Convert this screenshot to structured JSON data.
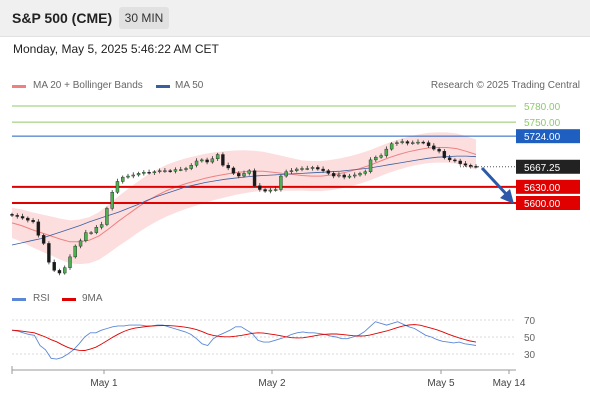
{
  "header": {
    "title": "S&P 500 (CME)",
    "timeframe": "30 MIN"
  },
  "date_line": "Monday, May 5, 2025 5:46:22 AM CET",
  "legend": {
    "bollinger": "MA 20 + Bollinger Bands",
    "ma50": "MA 50",
    "copyright": "Research © 2025 Trading Central",
    "rsi": "RSI",
    "ma9": "9MA"
  },
  "colors": {
    "bollinger": "#f08080",
    "ma50": "#3a5fa0",
    "resistance_green": "#8fc86a",
    "resistance_blue": "#1f5fbf",
    "support_red": "#e00000",
    "rsi": "#5b87d6",
    "rsi_ma": "#e00000",
    "current": "#222222"
  },
  "levels": [
    {
      "label": "5780.00",
      "value": 5780,
      "kind": "resistance_green"
    },
    {
      "label": "5750.00",
      "value": 5750,
      "kind": "resistance_green"
    },
    {
      "label": "5724.00",
      "value": 5724,
      "kind": "resistance_blue"
    },
    {
      "label": "5667.25",
      "value": 5667.25,
      "kind": "current"
    },
    {
      "label": "5630.00",
      "value": 5630,
      "kind": "support_red"
    },
    {
      "label": "5600.00",
      "value": 5600,
      "kind": "support_red"
    }
  ],
  "rsi_levels": [
    "70",
    "50",
    "30"
  ],
  "x_axis": [
    "May 1",
    "May 2",
    "May 5",
    "May 14"
  ],
  "chart_data": {
    "type": "candlestick",
    "instrument": "S&P 500 (CME)",
    "timeframe": "30 MIN",
    "current_price": 5667.25,
    "y_range": [
      5460,
      5810
    ],
    "rsi_range": [
      10,
      90
    ],
    "closes": [
      5577,
      5575,
      5572,
      5568,
      5565,
      5540,
      5525,
      5490,
      5475,
      5470,
      5480,
      5500,
      5520,
      5530,
      5545,
      5545,
      5555,
      5560,
      5590,
      5620,
      5640,
      5648,
      5650,
      5652,
      5655,
      5657,
      5656,
      5658,
      5660,
      5660,
      5659,
      5662,
      5662,
      5664,
      5670,
      5678,
      5680,
      5676,
      5682,
      5690,
      5670,
      5665,
      5655,
      5650,
      5655,
      5660,
      5632,
      5625,
      5622,
      5624,
      5625,
      5650,
      5658,
      5660,
      5663,
      5664,
      5664,
      5666,
      5663,
      5660,
      5655,
      5650,
      5652,
      5648,
      5650,
      5652,
      5655,
      5658,
      5680,
      5685,
      5688,
      5700,
      5710,
      5712,
      5714,
      5711,
      5712,
      5713,
      5712,
      5706,
      5700,
      5696,
      5684,
      5680,
      5678,
      5673,
      5670,
      5668,
      5667.25
    ],
    "bollinger_mid": [
      5563,
      5558,
      5551,
      5545,
      5539,
      5533,
      5528,
      5528,
      5531,
      5539,
      5552,
      5566,
      5579,
      5592,
      5604,
      5614,
      5623,
      5630,
      5636,
      5641,
      5646,
      5650,
      5653,
      5656,
      5658,
      5659,
      5659,
      5657,
      5655,
      5653,
      5651,
      5650,
      5650,
      5652,
      5655,
      5659,
      5664,
      5670,
      5677,
      5684,
      5690,
      5695,
      5699,
      5702,
      5703,
      5703,
      5701,
      5696,
      5690
    ],
    "ma50": [
      5522,
      5526,
      5530,
      5534,
      5540,
      5546,
      5552,
      5558,
      5565,
      5571,
      5577,
      5583,
      5590,
      5597,
      5605,
      5612,
      5618,
      5624,
      5630,
      5634,
      5638,
      5641,
      5644,
      5646,
      5648,
      5650,
      5651,
      5652,
      5653,
      5654,
      5655,
      5656,
      5657,
      5658,
      5659,
      5661,
      5663,
      5665,
      5668,
      5671,
      5674,
      5677,
      5680,
      5683,
      5685,
      5686,
      5687,
      5687,
      5686
    ],
    "rsi": [
      58,
      57,
      55,
      53,
      52,
      40,
      35,
      25,
      24,
      26,
      30,
      35,
      42,
      50,
      55,
      55,
      58,
      60,
      62,
      63,
      63,
      64,
      64,
      64,
      63,
      63,
      64,
      64,
      62,
      60,
      58,
      56,
      53,
      48,
      42,
      40,
      48,
      52,
      55,
      58,
      62,
      62,
      58,
      54,
      46,
      44,
      44,
      46,
      48,
      50,
      53,
      55,
      56,
      55,
      55,
      54,
      53,
      51,
      50,
      48,
      48,
      50,
      52,
      56,
      62,
      68,
      66,
      64,
      66,
      68,
      65,
      62,
      60,
      56,
      52,
      50,
      47,
      45,
      44,
      43,
      44,
      42,
      41,
      40
    ]
  }
}
